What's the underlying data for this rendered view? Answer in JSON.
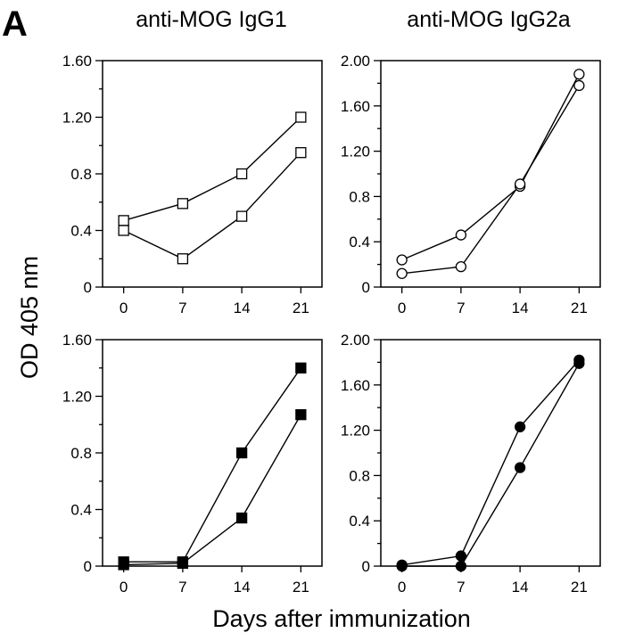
{
  "figure": {
    "panel_letter": "A",
    "ylabel": "OD 405 nm",
    "xlabel": "Days after immunization",
    "col_titles": [
      "anti-MOG IgG1",
      "anti-MOG IgG2a"
    ]
  },
  "chart_data": [
    {
      "type": "line",
      "position": "top-left",
      "x_ticks": [
        "0",
        "7",
        "14",
        "21"
      ],
      "y_ticks": [
        "0",
        "0.4",
        "0.8",
        "1.20",
        "1.60"
      ],
      "xlim": [
        -2.5,
        23.5
      ],
      "ylim": [
        0,
        1.6
      ],
      "marker": "open-square",
      "series": [
        {
          "x": [
            0,
            7,
            14,
            21
          ],
          "y": [
            0.47,
            0.59,
            0.8,
            1.2
          ]
        },
        {
          "x": [
            0,
            7,
            14,
            21
          ],
          "y": [
            0.4,
            0.2,
            0.5,
            0.95
          ]
        }
      ]
    },
    {
      "type": "line",
      "position": "top-right",
      "x_ticks": [
        "0",
        "7",
        "14",
        "21"
      ],
      "y_ticks": [
        "0",
        "0.4",
        "0.8",
        "1.20",
        "1.60",
        "2.00"
      ],
      "xlim": [
        -2.5,
        23.5
      ],
      "ylim": [
        0,
        2.0
      ],
      "marker": "open-circle",
      "series": [
        {
          "x": [
            0,
            7,
            14,
            21
          ],
          "y": [
            0.24,
            0.46,
            0.89,
            1.88
          ]
        },
        {
          "x": [
            0,
            7,
            14,
            21
          ],
          "y": [
            0.12,
            0.18,
            0.91,
            1.78
          ]
        }
      ]
    },
    {
      "type": "line",
      "position": "bottom-left",
      "x_ticks": [
        "0",
        "7",
        "14",
        "21"
      ],
      "y_ticks": [
        "0",
        "0.4",
        "0.8",
        "1.20",
        "1.60"
      ],
      "xlim": [
        -2.5,
        23.5
      ],
      "ylim": [
        0,
        1.6
      ],
      "marker": "filled-square",
      "series": [
        {
          "x": [
            0,
            7,
            14,
            21
          ],
          "y": [
            0.03,
            0.03,
            0.8,
            1.4
          ]
        },
        {
          "x": [
            0,
            7,
            14,
            21
          ],
          "y": [
            0.01,
            0.02,
            0.34,
            1.07
          ]
        }
      ]
    },
    {
      "type": "line",
      "position": "bottom-right",
      "x_ticks": [
        "0",
        "7",
        "14",
        "21"
      ],
      "y_ticks": [
        "0",
        "0.4",
        "0.8",
        "1.20",
        "1.60",
        "2.00"
      ],
      "xlim": [
        -2.5,
        23.5
      ],
      "ylim": [
        0,
        2.0
      ],
      "marker": "filled-circle",
      "series": [
        {
          "x": [
            0,
            7,
            14,
            21
          ],
          "y": [
            0.01,
            0.09,
            1.23,
            1.82
          ]
        },
        {
          "x": [
            0,
            7,
            14,
            21
          ],
          "y": [
            0.0,
            0.0,
            0.87,
            1.79
          ]
        }
      ]
    }
  ]
}
